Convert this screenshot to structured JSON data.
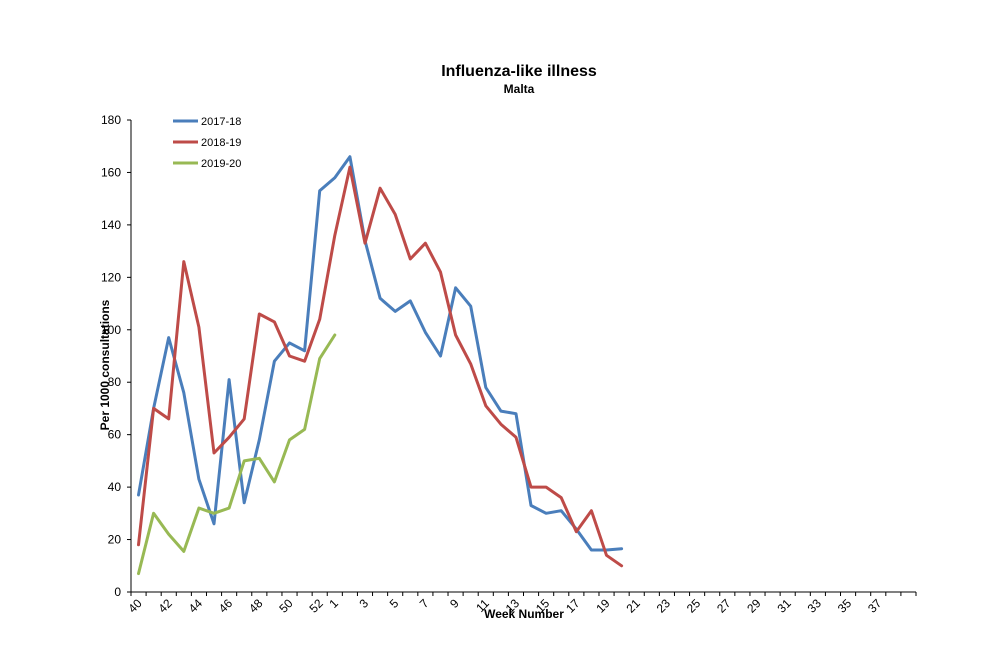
{
  "chart_data": {
    "type": "line",
    "title": "Influenza-like illness",
    "subtitle": "Malta",
    "xlabel": "Week Number",
    "ylabel": "Per 1000 consultations",
    "ylim": [
      0,
      180
    ],
    "yticks": [
      0,
      20,
      40,
      60,
      80,
      100,
      120,
      140,
      160,
      180
    ],
    "weeks": [
      "40",
      "41",
      "42",
      "43",
      "44",
      "45",
      "46",
      "47",
      "48",
      "49",
      "50",
      "51",
      "52",
      "1",
      "2",
      "3",
      "4",
      "5",
      "6",
      "7",
      "8",
      "9",
      "10",
      "11",
      "12",
      "13",
      "14",
      "15",
      "16",
      "17",
      "18",
      "19",
      "20",
      "21",
      "22",
      "23",
      "24",
      "25",
      "26",
      "27",
      "28",
      "29",
      "30",
      "31",
      "32",
      "33",
      "34",
      "35",
      "36",
      "37",
      "38",
      "39"
    ],
    "x_tick_labels": [
      "40",
      "42",
      "44",
      "46",
      "48",
      "50",
      "52",
      "1",
      "3",
      "5",
      "7",
      "9",
      "11",
      "13",
      "15",
      "17",
      "19",
      "21",
      "23",
      "25",
      "27",
      "29",
      "31",
      "33",
      "35",
      "37"
    ],
    "legend_position": "top-left",
    "grid": false,
    "series": [
      {
        "name": "2017-18",
        "color": "#4a7ebb",
        "values": [
          37,
          70,
          97,
          76,
          43,
          26,
          81,
          34,
          58,
          88,
          95,
          92,
          153,
          158,
          166,
          134,
          112,
          107,
          111,
          99,
          90,
          116,
          109,
          78,
          69,
          68,
          33,
          30,
          31,
          24,
          16,
          16,
          16.5
        ]
      },
      {
        "name": "2018-19",
        "color": "#be4b48",
        "values": [
          18,
          70,
          66,
          126,
          101,
          53,
          59,
          66,
          106,
          103,
          90,
          88,
          104,
          136,
          162,
          133,
          154,
          144,
          127,
          133,
          122,
          98,
          87,
          71,
          64,
          59,
          40,
          40,
          36,
          23,
          31,
          14,
          10
        ]
      },
      {
        "name": "2019-20",
        "color": "#98b954",
        "values": [
          7,
          30,
          22,
          15.5,
          32,
          30,
          32,
          50,
          51,
          42,
          58,
          62,
          89,
          98
        ]
      }
    ]
  }
}
